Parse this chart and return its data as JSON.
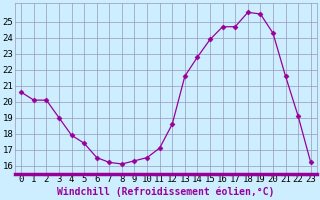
{
  "x": [
    0,
    1,
    2,
    3,
    4,
    5,
    6,
    7,
    8,
    9,
    10,
    11,
    12,
    13,
    14,
    15,
    16,
    17,
    18,
    19,
    20,
    21,
    22,
    23
  ],
  "y": [
    20.6,
    20.1,
    20.1,
    19.0,
    17.9,
    17.4,
    16.5,
    16.2,
    16.1,
    16.3,
    16.5,
    17.1,
    18.6,
    21.6,
    22.8,
    23.9,
    24.7,
    24.7,
    25.6,
    25.5,
    24.3,
    21.6,
    19.1,
    16.2
  ],
  "line_color": "#990099",
  "marker": "D",
  "marker_size": 2.5,
  "bg_color": "#cceeff",
  "plot_bg_color": "#cceeff",
  "grid_color": "#9999bb",
  "xlabel": "Windchill (Refroidissement éolien,°C)",
  "xlabel_fontsize": 7,
  "tick_fontsize": 6.5,
  "ylim": [
    15.5,
    26.2
  ],
  "yticks": [
    16,
    17,
    18,
    19,
    20,
    21,
    22,
    23,
    24,
    25
  ],
  "xlim": [
    -0.5,
    23.5
  ],
  "spine_color": "#990099",
  "bottom_bar_color": "#990099"
}
